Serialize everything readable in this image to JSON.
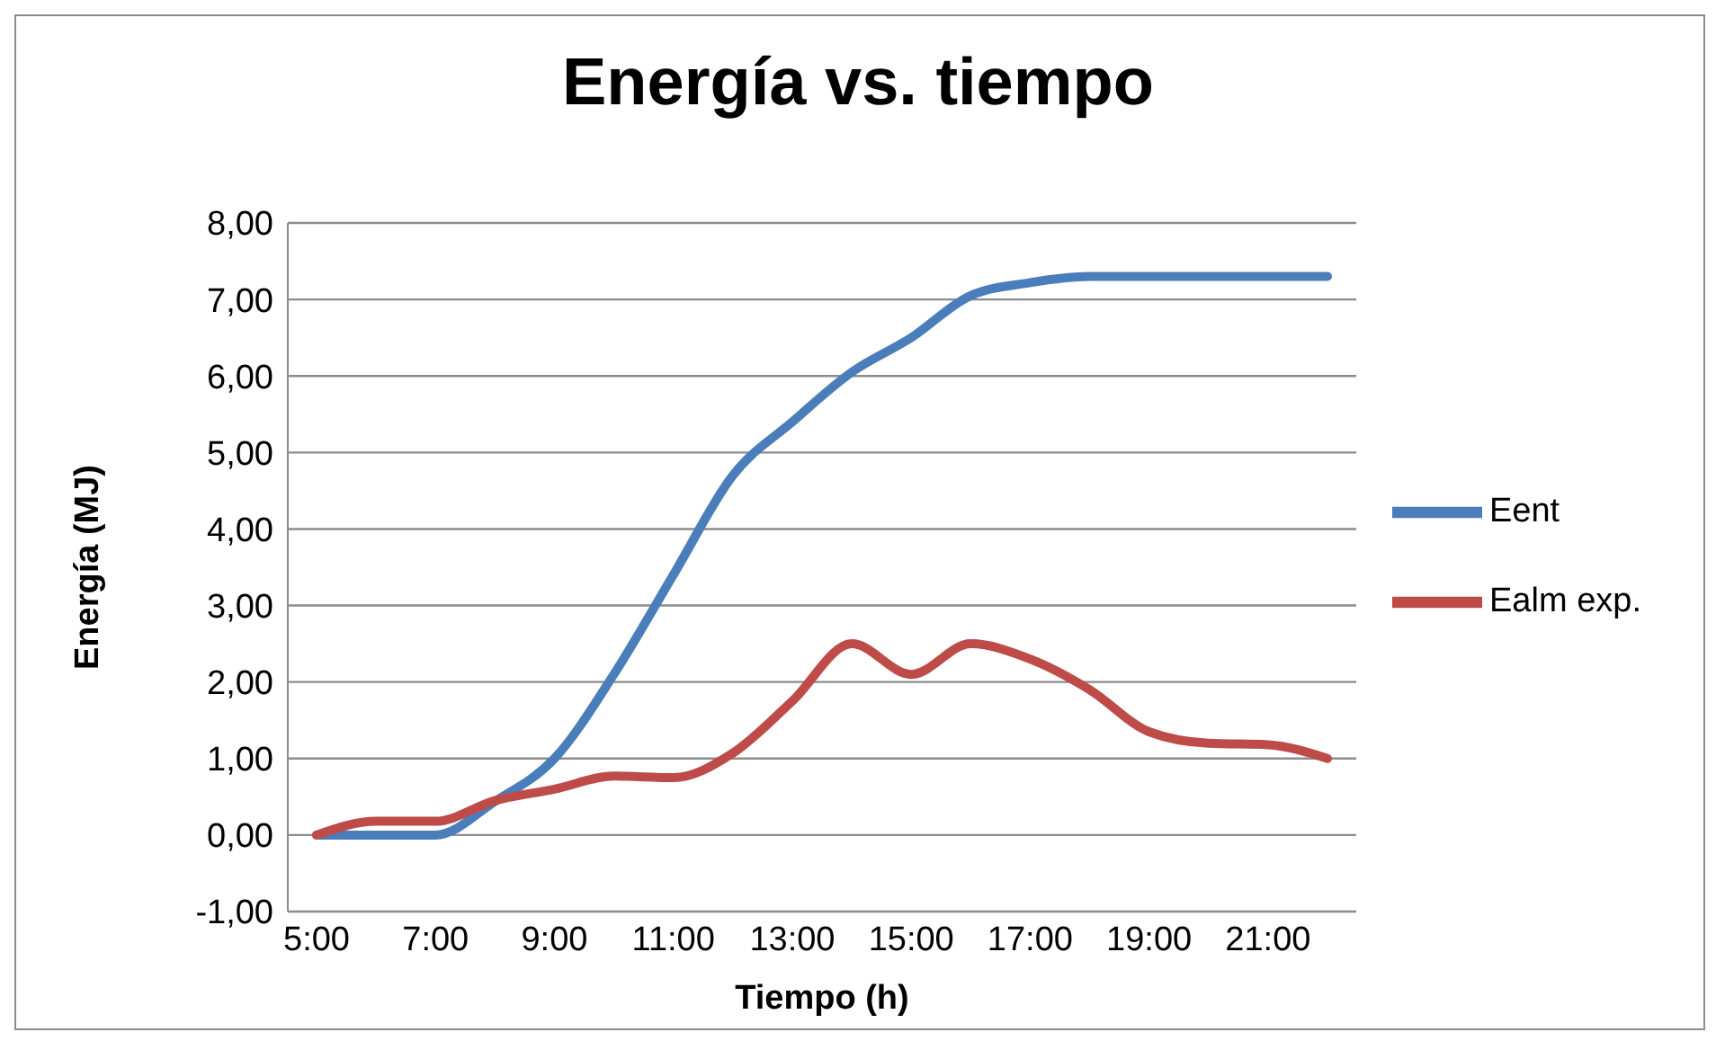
{
  "chart_data": {
    "type": "line",
    "title": "Energía vs. tiempo",
    "xlabel": "Tiempo (h)",
    "ylabel": "Energía (MJ)",
    "categories": [
      "5:00",
      null,
      "7:00",
      null,
      "9:00",
      null,
      "11:00",
      null,
      "13:00",
      null,
      "15:00",
      null,
      "17:00",
      null,
      "19:00",
      null,
      "21:00",
      null
    ],
    "series": [
      {
        "name": "Eent",
        "color": "#4a7ebb",
        "values": [
          0,
          0,
          0,
          0.44,
          1.0,
          2.1,
          3.4,
          4.7,
          5.4,
          6.05,
          6.5,
          7.05,
          7.22,
          7.3,
          7.3,
          7.3,
          7.3,
          7.3
        ]
      },
      {
        "name": "Ealm exp.",
        "color": "#be4b48",
        "values": [
          0,
          0.18,
          0.18,
          0.45,
          0.6,
          0.77,
          0.75,
          1.07,
          1.75,
          2.5,
          2.1,
          2.5,
          2.3,
          1.9,
          1.35,
          1.2,
          1.18,
          1.0
        ]
      }
    ],
    "ylim": [
      -1,
      8
    ],
    "yticks": [
      {
        "value": -1,
        "label": "-1,00"
      },
      {
        "value": 0,
        "label": "0,00"
      },
      {
        "value": 1,
        "label": "1,00"
      },
      {
        "value": 2,
        "label": "2,00"
      },
      {
        "value": 3,
        "label": "3,00"
      },
      {
        "value": 4,
        "label": "4,00"
      },
      {
        "value": 5,
        "label": "5,00"
      },
      {
        "value": 6,
        "label": "6,00"
      },
      {
        "value": 7,
        "label": "7,00"
      },
      {
        "value": 8,
        "label": "8,00"
      }
    ],
    "grid": "y",
    "legend": "right",
    "marker": "none",
    "line_style": "solid"
  }
}
